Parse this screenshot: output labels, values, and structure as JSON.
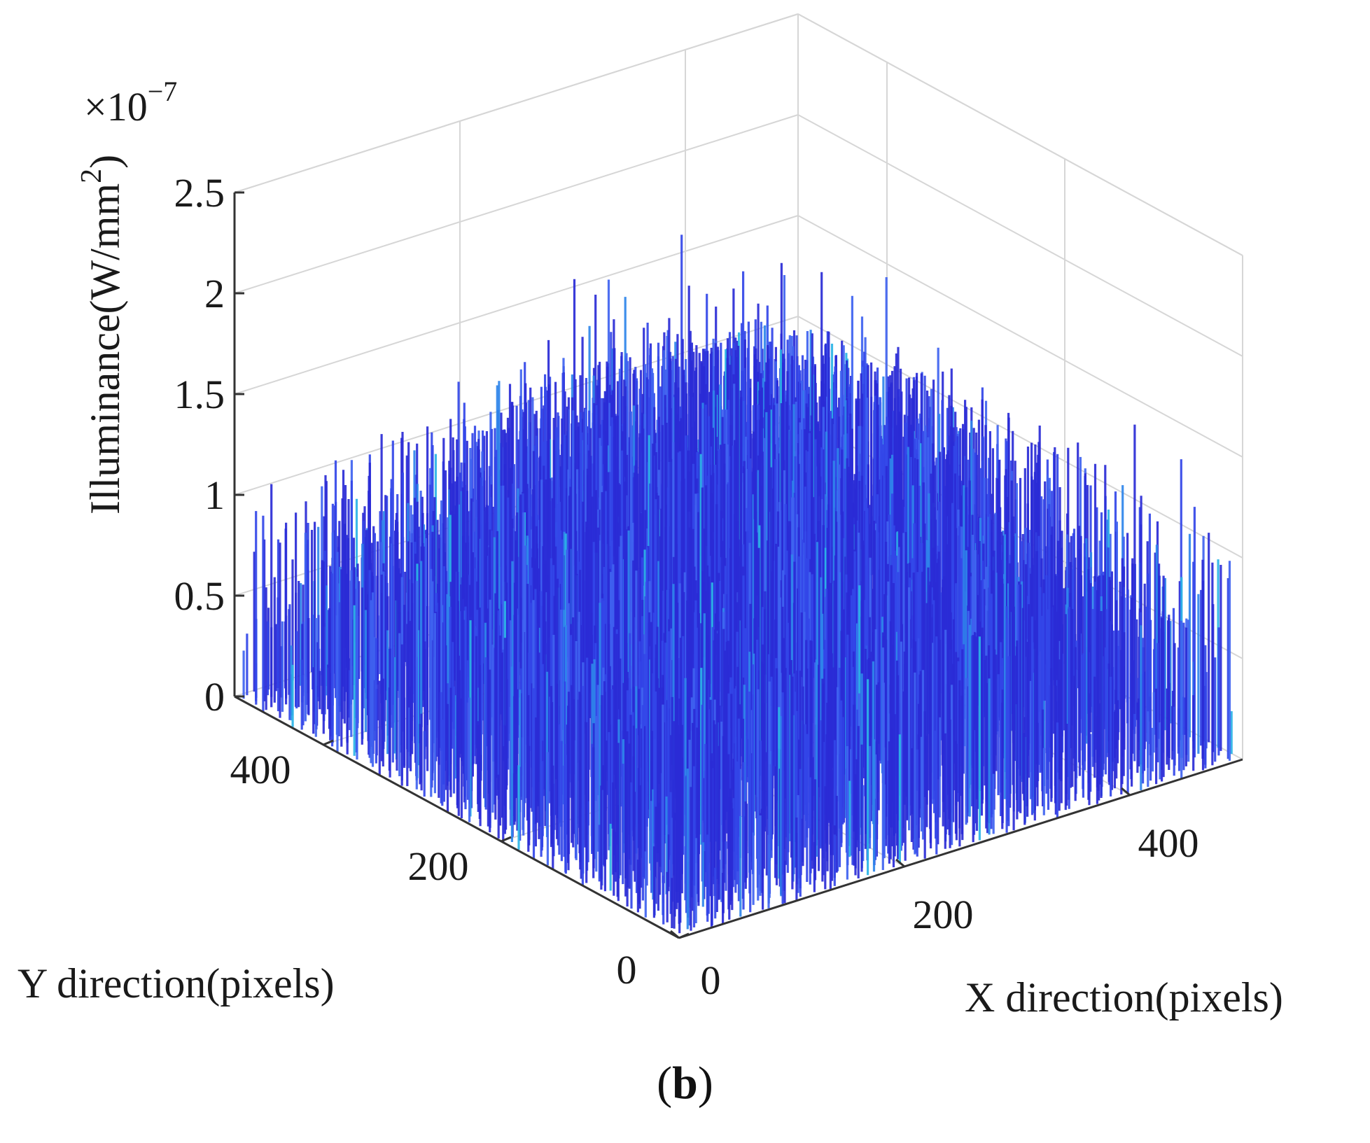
{
  "figure": {
    "panel_open": "(",
    "panel_letter": "b",
    "panel_close": ")"
  },
  "chart_data": {
    "type": "bar3d",
    "title": "",
    "xlabel": "X direction(pixels)",
    "ylabel": "Y direction(pixels)",
    "zlabel_main": "Illuminance(W/mm",
    "zlabel_sup": "2",
    "zlabel_close": ")",
    "z_multiplier_base": "×10",
    "z_multiplier_exp": "−7",
    "xlim": [
      0,
      500
    ],
    "ylim": [
      0,
      500
    ],
    "zlim": [
      0,
      2.5
    ],
    "x_ticks": [
      0,
      200,
      400
    ],
    "x_tick_labels": [
      "0",
      "200",
      "400"
    ],
    "y_ticks": [
      0,
      200,
      400
    ],
    "y_tick_labels": [
      "0",
      "200",
      "400"
    ],
    "z_ticks": [
      0,
      0.5,
      1,
      1.5,
      2,
      2.5
    ],
    "z_tick_labels": [
      "0",
      "0.5",
      "1",
      "1.5",
      "2",
      "2.5"
    ],
    "z_units_scale": 1e-07,
    "grid": true,
    "colormap": [
      "#2a2bd6",
      "#3347e8",
      "#3f63f0",
      "#2f86ea",
      "#2bb4e6"
    ],
    "grid_color": "#d6d6d6",
    "axis_color": "#333333",
    "distribution": {
      "description_of_values": "noisy illuminance distribution, peak near centre",
      "center_mean": 1.55,
      "edge_mean": 0.55,
      "noise_amplitude": 0.55,
      "max_value": 2.25,
      "grid_resolution_points": 500
    }
  }
}
